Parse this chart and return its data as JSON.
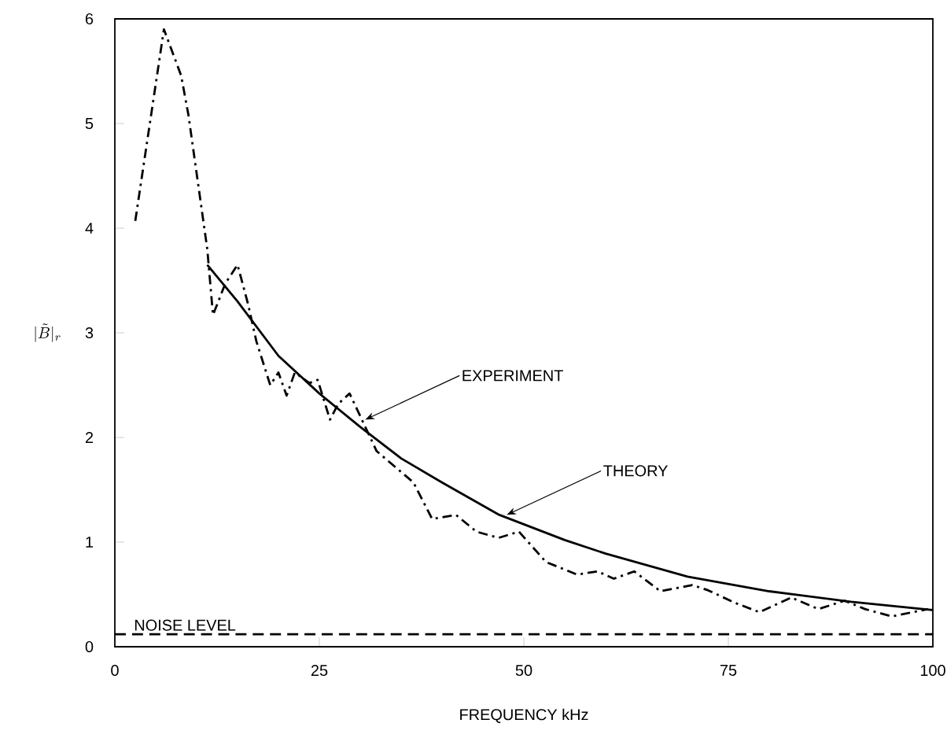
{
  "chart_data": {
    "type": "line",
    "xlabel": "FREQUENCY kHz",
    "ylabel": "|\\tilde{B}|_{r}",
    "xlim": [
      0,
      100
    ],
    "ylim": [
      0,
      6
    ],
    "xticks": [
      0,
      25,
      50,
      75,
      100
    ],
    "yticks": [
      0,
      1,
      2,
      3,
      4,
      5,
      6
    ],
    "series": [
      {
        "color": "#000000",
        "line_style": "dashdot",
        "x": [
          2.5,
          6,
          8.1,
          9,
          11.3,
          12,
          13.5,
          15,
          16.3,
          17.3,
          19,
          20,
          21,
          22,
          23.8,
          24.8,
          26.3,
          27.3,
          28.7,
          30.2,
          32,
          36.5,
          38.8,
          41.7,
          44.2,
          46.9,
          49.4,
          52.7,
          56.5,
          59,
          61,
          63.5,
          66.7,
          70.6,
          72.5,
          75.8,
          78.8,
          82.7,
          86,
          89.2,
          91.7,
          95,
          99.4
        ],
        "values": [
          4.07,
          5.9,
          5.46,
          5.08,
          3.8,
          3.17,
          3.47,
          3.65,
          3.27,
          2.92,
          2.5,
          2.62,
          2.4,
          2.62,
          2.52,
          2.55,
          2.17,
          2.32,
          2.42,
          2.17,
          1.87,
          1.57,
          1.22,
          1.26,
          1.1,
          1.04,
          1.1,
          0.81,
          0.69,
          0.72,
          0.65,
          0.72,
          0.53,
          0.59,
          0.54,
          0.42,
          0.33,
          0.47,
          0.36,
          0.44,
          0.36,
          0.29,
          0.36
        ]
      },
      {
        "color": "#000000",
        "line_style": "solid",
        "x": [
          11.3,
          15,
          20,
          25,
          30,
          35,
          40,
          47,
          55,
          60,
          70,
          80,
          90,
          100
        ],
        "values": [
          3.65,
          3.3,
          2.78,
          2.42,
          2.1,
          1.8,
          1.57,
          1.26,
          1.02,
          0.89,
          0.67,
          0.53,
          0.43,
          0.35
        ]
      }
    ],
    "ref_lines": [
      {
        "axis": "y",
        "value": 0.12,
        "label": "NOISE LEVEL",
        "line_style": "dashed",
        "color": "#000000"
      }
    ],
    "annotations": [
      {
        "text": "EXPERIMENT",
        "x": 30.6,
        "y": 2.17
      },
      {
        "text": "THEORY",
        "x": 47.9,
        "y": 1.26
      }
    ]
  }
}
